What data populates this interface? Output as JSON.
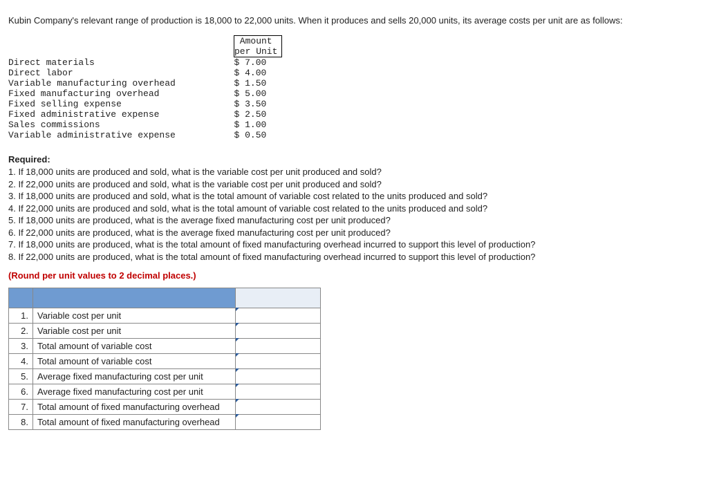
{
  "intro": "Kubin Company's relevant range of production is 18,000 to 22,000 units. When it produces and sells 20,000 units, its average costs per unit are as follows:",
  "costTable": {
    "header1": "Amount",
    "header2": "per Unit",
    "rows": [
      {
        "label": "Direct materials",
        "amount": "$ 7.00"
      },
      {
        "label": "Direct labor",
        "amount": "$ 4.00"
      },
      {
        "label": "Variable manufacturing overhead",
        "amount": "$ 1.50"
      },
      {
        "label": "Fixed manufacturing overhead",
        "amount": "$ 5.00"
      },
      {
        "label": "Fixed selling expense",
        "amount": "$ 3.50"
      },
      {
        "label": "Fixed administrative expense",
        "amount": "$ 2.50"
      },
      {
        "label": "Sales commissions",
        "amount": "$ 1.00"
      },
      {
        "label": "Variable administrative expense",
        "amount": "$ 0.50"
      }
    ]
  },
  "requiredHeading": "Required:",
  "requiredItems": [
    "1. If 18,000 units are produced and sold, what is the variable cost per unit produced and sold?",
    "2. If 22,000 units are produced and sold, what is the variable cost per unit produced and sold?",
    "3. If 18,000 units are produced and sold, what is the total amount of variable cost related to the units produced and sold?",
    "4. If 22,000 units are produced and sold, what is the total amount of variable cost related to the units produced and sold?",
    "5. If 18,000 units are produced, what is the average fixed manufacturing cost per unit produced?",
    "6. If 22,000 units are produced, what is the average fixed manufacturing cost per unit produced?",
    "7. If 18,000 units are produced, what is the total amount of fixed manufacturing overhead incurred to support this level of production?",
    "8. If 22,000 units are produced, what is the total amount of fixed manufacturing overhead incurred to support this level of production?"
  ],
  "roundNote": "(Round per unit values to 2 decimal places.)",
  "answerTable": {
    "rows": [
      {
        "num": "1.",
        "desc": "Variable cost per unit",
        "val": ""
      },
      {
        "num": "2.",
        "desc": "Variable cost per unit",
        "val": ""
      },
      {
        "num": "3.",
        "desc": "Total amount of variable cost",
        "val": ""
      },
      {
        "num": "4.",
        "desc": "Total amount of variable cost",
        "val": ""
      },
      {
        "num": "5.",
        "desc": "Average fixed manufacturing cost per unit",
        "val": ""
      },
      {
        "num": "6.",
        "desc": "Average fixed manufacturing cost per unit",
        "val": ""
      },
      {
        "num": "7.",
        "desc": "Total amount of fixed manufacturing overhead",
        "val": ""
      },
      {
        "num": "8.",
        "desc": "Total amount of fixed manufacturing overhead",
        "val": ""
      }
    ]
  },
  "style": {
    "headerBg": "#6f9bd1",
    "headerRightBg": "#e8eef6",
    "markerColor": "#2a5a9a",
    "noteColor": "#c00000",
    "borderColor": "#888888",
    "bodyText": "#222222",
    "monoFont": "Courier New"
  }
}
